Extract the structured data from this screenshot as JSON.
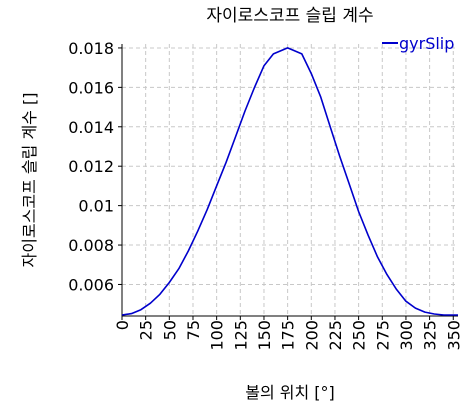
{
  "chart_data": {
    "type": "line",
    "title": "자이로스코프 슬립 계수",
    "xlabel": "볼의 위치 [°]",
    "ylabel": "자이로스코프 슬립 계수 []",
    "xlim": [
      0,
      355
    ],
    "ylim": [
      0.0044,
      0.0182
    ],
    "xticks": [
      0,
      25,
      50,
      75,
      100,
      125,
      150,
      175,
      200,
      225,
      250,
      275,
      300,
      325,
      350
    ],
    "yticks": [
      0.006,
      0.008,
      0.01,
      0.012,
      0.014,
      0.016,
      0.018
    ],
    "ytick_labels": [
      "0.006",
      "0.008",
      "0.01",
      "0.012",
      "0.014",
      "0.016",
      "0.018"
    ],
    "grid": true,
    "legend_position": "top-right",
    "series": [
      {
        "name": "gyrSlip",
        "color": "#0000cc",
        "x": [
          0,
          10,
          20,
          30,
          40,
          50,
          60,
          70,
          80,
          90,
          100,
          110,
          120,
          130,
          140,
          150,
          160,
          170,
          175,
          180,
          190,
          200,
          210,
          220,
          230,
          240,
          250,
          260,
          270,
          280,
          290,
          300,
          310,
          320,
          330,
          340,
          350,
          355
        ],
        "y": [
          0.00445,
          0.00452,
          0.00472,
          0.00505,
          0.0055,
          0.0061,
          0.0068,
          0.0077,
          0.0087,
          0.0098,
          0.011,
          0.0122,
          0.0135,
          0.0148,
          0.016,
          0.0171,
          0.0177,
          0.0179,
          0.018,
          0.0179,
          0.0177,
          0.0167,
          0.0155,
          0.014,
          0.0125,
          0.0111,
          0.0097,
          0.0085,
          0.0074,
          0.0065,
          0.00575,
          0.00515,
          0.0048,
          0.0046,
          0.0045,
          0.00445,
          0.00445,
          0.00445
        ]
      }
    ]
  }
}
